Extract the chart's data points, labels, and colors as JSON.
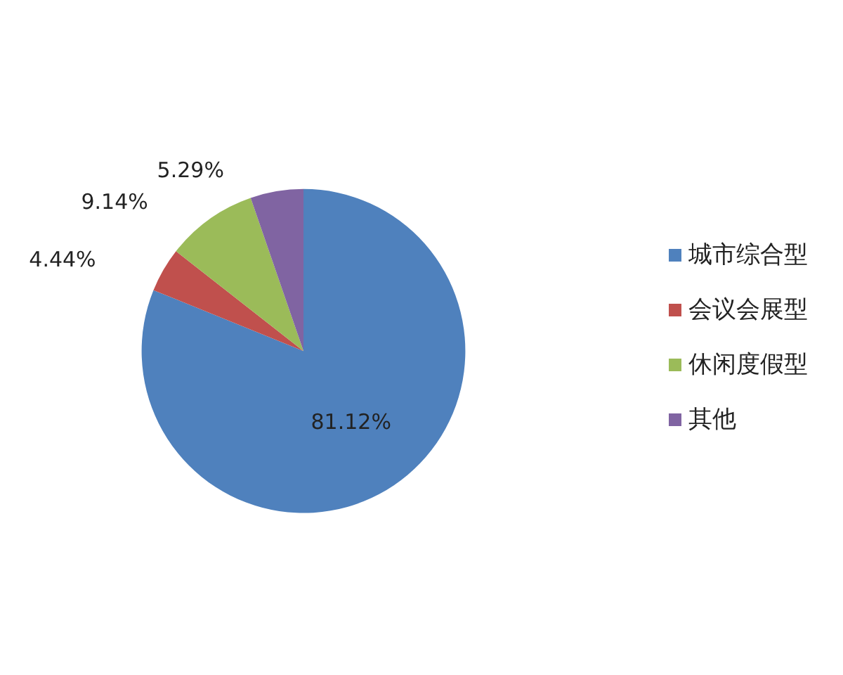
{
  "chart_data": {
    "type": "pie",
    "categories": [
      "城市综合型",
      "会议会展型",
      "休闲度假型",
      "其他"
    ],
    "values": [
      81.12,
      4.44,
      9.14,
      5.29
    ],
    "value_labels": [
      "81.12%",
      "4.44%",
      "9.14%",
      "5.29%"
    ],
    "colors": [
      "#4f81bd",
      "#c0504d",
      "#9bbb59",
      "#8064a2"
    ],
    "legend": "right"
  }
}
